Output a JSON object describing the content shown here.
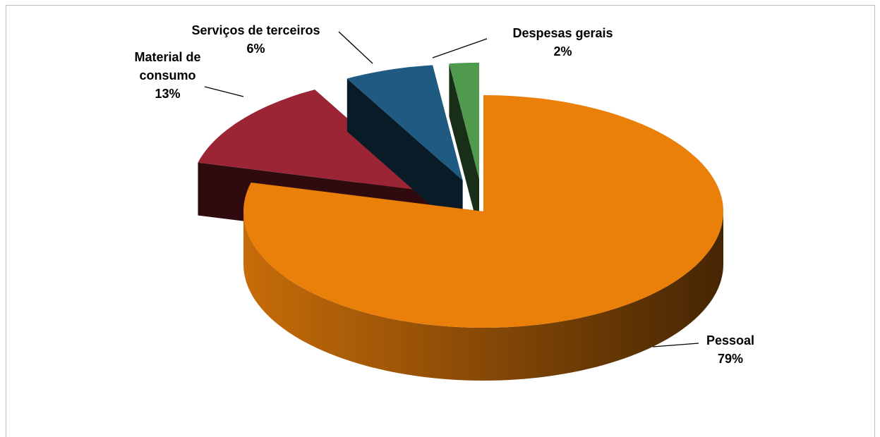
{
  "chart_data": {
    "type": "pie",
    "categories": [
      "Pessoal",
      "Material de consumo",
      "Serviços de terceiros",
      "Despesas gerais"
    ],
    "values": [
      79,
      13,
      6,
      2
    ],
    "value_labels": [
      "79%",
      "13%",
      "6%",
      "2%"
    ],
    "colors": [
      "#ea7f0a",
      "#9b2535",
      "#1f5a82",
      "#4f9a4c"
    ]
  }
}
